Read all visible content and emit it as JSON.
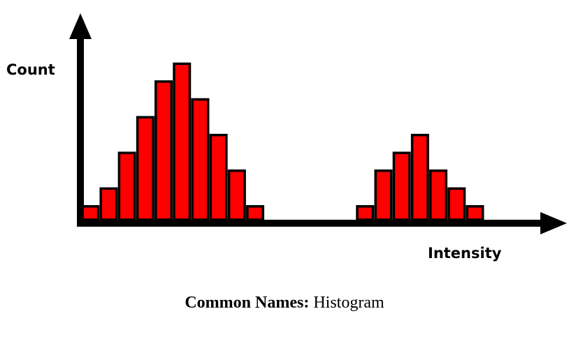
{
  "chart_data": {
    "type": "bar",
    "xlabel": "Intensity",
    "ylabel": "Count",
    "bar_color": "#ff0000",
    "outline_color": "#000000",
    "axis_color": "#000000",
    "grid": false,
    "ylim": [
      0,
      9
    ],
    "values": [
      0.75,
      1.75,
      3.75,
      5.75,
      7.75,
      8.75,
      6.75,
      4.75,
      2.75,
      0.75,
      0,
      0,
      0,
      0,
      0,
      0.75,
      2.75,
      3.75,
      4.75,
      2.75,
      1.75,
      0.75
    ]
  },
  "caption": {
    "label": "Common Names:",
    "value": "Histogram"
  }
}
